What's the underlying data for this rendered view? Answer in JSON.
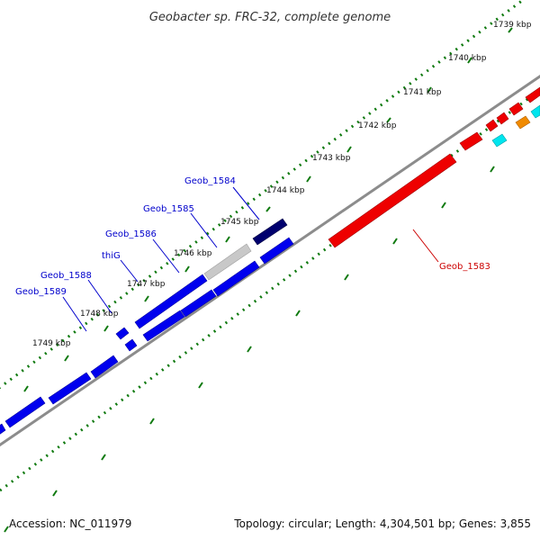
{
  "title": "Geobacter sp. FRC-32, complete genome",
  "scale_ticks": [
    "1739 kbp",
    "1740 kbp",
    "1741 kbp",
    "1742 kbp",
    "1743 kbp",
    "1744 kbp",
    "1745 kbp",
    "1746 kbp",
    "1747 kbp",
    "1748 kbp",
    "1749 kbp"
  ],
  "gene_labels": [
    {
      "text": "Geob_1584",
      "color": "#0000cc"
    },
    {
      "text": "Geob_1585",
      "color": "#0000cc"
    },
    {
      "text": "Geob_1586",
      "color": "#0000cc"
    },
    {
      "text": "thiG",
      "color": "#0000cc"
    },
    {
      "text": "Geob_1588",
      "color": "#0000cc"
    },
    {
      "text": "Geob_1589",
      "color": "#0000cc"
    },
    {
      "text": "Geob_1583",
      "color": "#cc0000"
    }
  ],
  "colors": {
    "forward_gene": "#0000ee",
    "selected_gene": "#00006e",
    "pseudo_gene": "#c8c8c8",
    "reverse_gene": "#ee0000",
    "cyan_gene": "#00e5ee",
    "orange_gene": "#f08a00",
    "backbone": "#8c8c8c",
    "scale_dots": "#0f7a0f"
  },
  "footer": {
    "accession": "Accession: NC_011979",
    "topology": "Topology: circular; Length: 4,304,501 bp; Genes: 3,855"
  }
}
